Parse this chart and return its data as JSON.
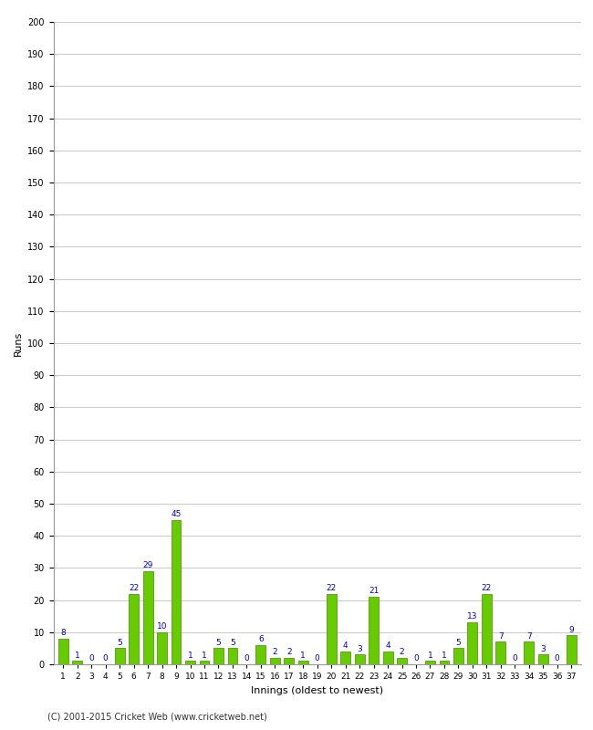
{
  "xlabel": "Innings (oldest to newest)",
  "ylabel": "Runs",
  "values": [
    8,
    1,
    0,
    0,
    5,
    22,
    29,
    10,
    45,
    1,
    1,
    5,
    5,
    0,
    6,
    2,
    2,
    1,
    0,
    22,
    4,
    3,
    21,
    4,
    2,
    0,
    1,
    1,
    5,
    13,
    22,
    7,
    0,
    7,
    3,
    0,
    9
  ],
  "bar_color": "#66cc00",
  "bar_edge_color": "#448800",
  "label_color": "#0000cc",
  "ylim": [
    0,
    200
  ],
  "yticks": [
    0,
    10,
    20,
    30,
    40,
    50,
    60,
    70,
    80,
    90,
    100,
    110,
    120,
    130,
    140,
    150,
    160,
    170,
    180,
    190,
    200
  ],
  "background_color": "#ffffff",
  "grid_color": "#cccccc",
  "copyright": "(C) 2001-2015 Cricket Web (www.cricketweb.net)",
  "label_fontsize": 6.5,
  "axis_label_fontsize": 8,
  "tick_fontsize": 7
}
